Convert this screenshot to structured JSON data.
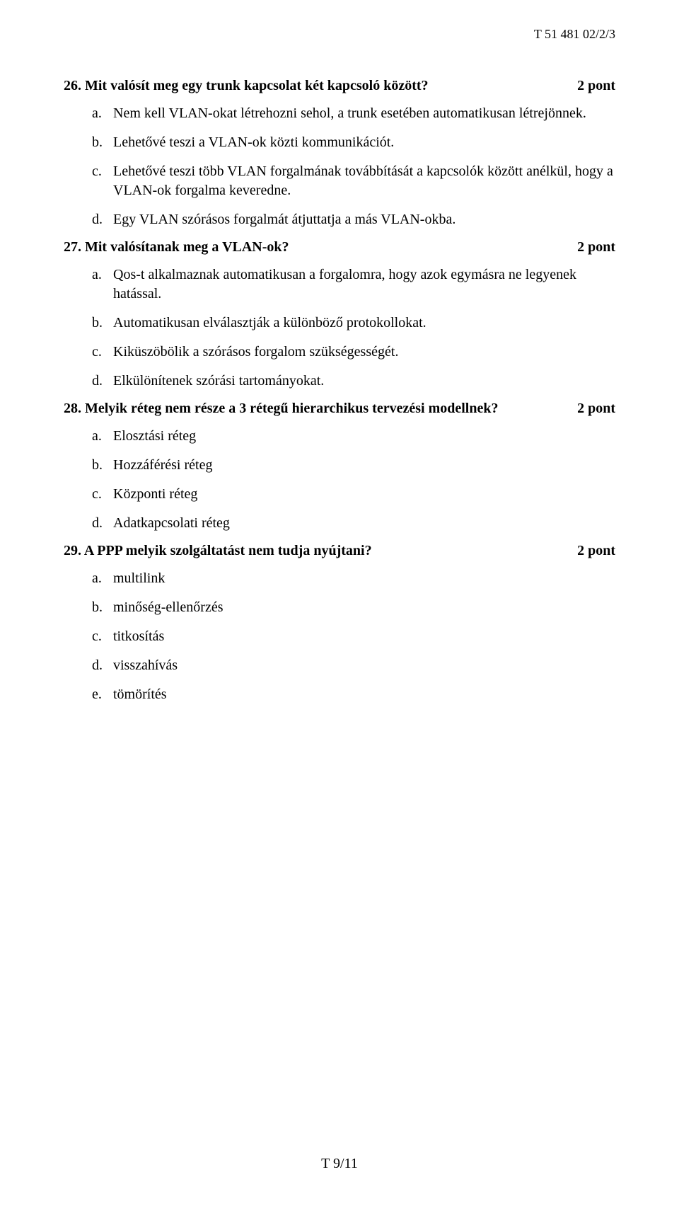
{
  "header_code": "T 51 481 02/2/3",
  "footer": "T 9/11",
  "questions": [
    {
      "number": "26.",
      "title": "Mit valósít meg egy trunk kapcsolat két kapcsoló között?",
      "points": "2 pont",
      "options": [
        {
          "letter": "a.",
          "text": "Nem kell VLAN-okat létrehozni sehol, a trunk esetében automatikusan létrejönnek."
        },
        {
          "letter": "b.",
          "text": "Lehetővé teszi a VLAN-ok közti kommunikációt."
        },
        {
          "letter": "c.",
          "text": "Lehetővé teszi több VLAN forgalmának továbbítását a kapcsolók között anélkül, hogy a VLAN-ok forgalma keveredne."
        },
        {
          "letter": "d.",
          "text": "Egy VLAN szórásos forgalmát átjuttatja a más VLAN-okba."
        }
      ]
    },
    {
      "number": "27.",
      "title": "Mit valósítanak meg a VLAN-ok?",
      "points": "2 pont",
      "options": [
        {
          "letter": "a.",
          "text": "Qos-t alkalmaznak automatikusan a forgalomra, hogy azok egymásra ne legyenek hatással."
        },
        {
          "letter": "b.",
          "text": "Automatikusan elválasztják a különböző protokollokat."
        },
        {
          "letter": "c.",
          "text": "Kiküszöbölik a szórásos forgalom szükségességét."
        },
        {
          "letter": "d.",
          "text": "Elkülönítenek szórási tartományokat."
        }
      ]
    },
    {
      "number": "28.",
      "title": "Melyik réteg nem része a 3 rétegű hierarchikus tervezési modellnek?",
      "points": "2 pont",
      "options": [
        {
          "letter": "a.",
          "text": "Elosztási réteg"
        },
        {
          "letter": "b.",
          "text": "Hozzáférési réteg"
        },
        {
          "letter": "c.",
          "text": "Központi réteg"
        },
        {
          "letter": "d.",
          "text": "Adatkapcsolati réteg"
        }
      ]
    },
    {
      "number": "29.",
      "title": "A PPP melyik szolgáltatást nem tudja nyújtani?",
      "points": "2 pont",
      "options": [
        {
          "letter": "a.",
          "text": "multilink"
        },
        {
          "letter": "b.",
          "text": "minőség-ellenőrzés"
        },
        {
          "letter": "c.",
          "text": "titkosítás"
        },
        {
          "letter": "d.",
          "text": "visszahívás"
        },
        {
          "letter": "e.",
          "text": "tömörítés"
        }
      ]
    }
  ]
}
